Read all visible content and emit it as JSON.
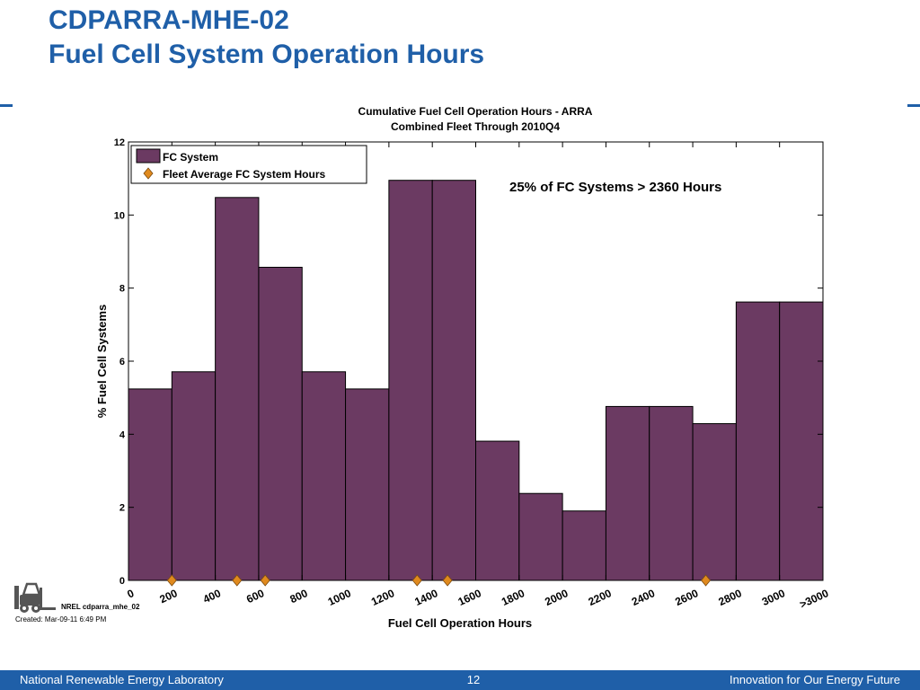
{
  "slide": {
    "title_line1": "CDPARRA-MHE-02",
    "title_line2": "Fuel Cell System Operation Hours"
  },
  "footer": {
    "left": "National Renewable Energy Laboratory",
    "page": "12",
    "right": "Innovation for Our Energy Future"
  },
  "meta": {
    "figure_id": "NREL cdparra_mhe_02",
    "created": "Created: Mar-09-11  6:49 PM"
  },
  "colors": {
    "title": "#1f5fa8",
    "bar": "#6b3a62",
    "marker": "#e08a1e",
    "footer_bg": "#1f5fa8"
  },
  "chart_data": {
    "type": "bar",
    "title": "Cumulative Fuel Cell Operation Hours - ARRA",
    "subtitle": "Combined Fleet Through 2010Q4",
    "xlabel": "Fuel Cell Operation Hours",
    "ylabel": "% Fuel Cell Systems",
    "ylim": [
      0,
      12
    ],
    "yticks": [
      0,
      2,
      4,
      6,
      8,
      10,
      12
    ],
    "xticks": [
      "0",
      "200",
      "400",
      "600",
      "800",
      "1000",
      "1200",
      "1400",
      "1600",
      "1800",
      "2000",
      "2200",
      "2400",
      "2600",
      "2800",
      "3000",
      ">3000"
    ],
    "bins": [
      "0-200",
      "200-400",
      "400-600",
      "600-800",
      "800-1000",
      "1000-1200",
      "1200-1400",
      "1400-1600",
      "1600-1800",
      "1800-2000",
      "2000-2200",
      "2200-2400",
      "2400-2600",
      "2600-2800",
      "2800-3000",
      ">3000"
    ],
    "series": [
      {
        "name": "FC System",
        "values": [
          5.24,
          5.71,
          10.48,
          8.57,
          5.71,
          5.24,
          10.95,
          10.95,
          3.81,
          2.38,
          1.9,
          4.76,
          4.76,
          4.29,
          7.62,
          7.62
        ]
      },
      {
        "name": "Fleet Average FC System Hours",
        "type": "scatter",
        "x": [
          200,
          500,
          630,
          1330,
          1470,
          2660
        ],
        "y": [
          0,
          0,
          0,
          0,
          0,
          0
        ]
      }
    ],
    "annotation": "25% of FC Systems > 2360 Hours",
    "legend_position": "top-left",
    "grid": false
  }
}
